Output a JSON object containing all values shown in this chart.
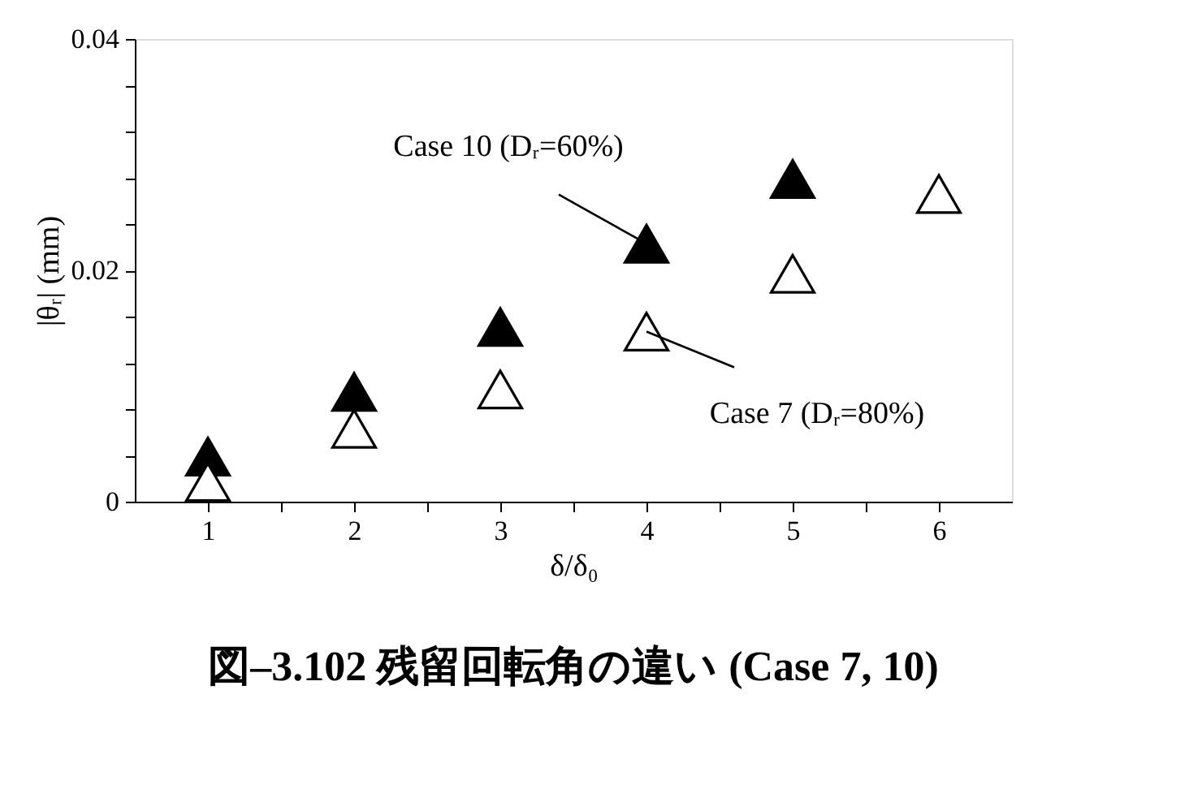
{
  "chart_data": {
    "type": "scatter",
    "title": "図–3.102 残留回転角の違い (Case 7, 10)",
    "xlabel": "δ/δ₀",
    "ylabel": "|θᵣ| (mm)",
    "x": [
      1,
      2,
      3,
      4,
      5,
      6
    ],
    "series": [
      {
        "color": "#000000",
        "values": [
          0.0039,
          0.0095,
          0.0151,
          0.0223,
          0.0279,
          null
        ]
      },
      {
        "color": "#000000",
        "values": [
          0.0017,
          0.0063,
          0.0097,
          0.0147,
          0.0197,
          0.0266
        ]
      }
    ],
    "xlim": [
      0.5,
      6.5
    ],
    "ylim": [
      0,
      0.04
    ],
    "xticks": [
      1,
      {
        "value": 1.5,
        "label": null
      },
      2,
      {
        "value": 2.5,
        "label": null
      },
      3,
      {
        "value": 3.5,
        "label": null
      },
      4,
      {
        "value": 4.5,
        "label": null
      },
      5,
      {
        "value": 5.5,
        "label": null
      },
      6
    ],
    "yticks": [
      0,
      {
        "value": 0.004,
        "label": null
      },
      {
        "value": 0.008,
        "label": null
      },
      {
        "value": 0.012,
        "label": null
      },
      {
        "value": 0.016,
        "label": null
      },
      0.02,
      {
        "value": 0.024,
        "label": null
      },
      {
        "value": 0.028,
        "label": null
      },
      {
        "value": 0.032,
        "label": null
      },
      {
        "value": 0.036,
        "label": null
      },
      0.04
    ],
    "annotations": [
      {
        "text": "Case 10 (Dᵣ=60%)",
        "x": 4,
        "y": 0.0223
      },
      {
        "text": "Case 7 (Dᵣ=80%)",
        "x": 4,
        "y": 0.0147
      }
    ],
    "marker": "triangle",
    "grid": false
  }
}
